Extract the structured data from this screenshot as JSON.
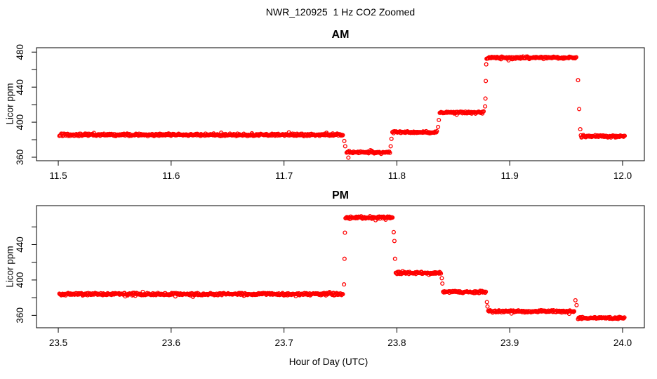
{
  "figure": {
    "title": "NWR_120925  1 Hz CO2 Zoomed",
    "xlabel": "Hour of Day (UTC)",
    "background": "#FFFFFF",
    "text_color": "#000000",
    "marker_color": "#FF0000"
  },
  "chart_data": [
    {
      "type": "scatter",
      "panel": "AM",
      "title": "AM",
      "ylabel": "Licor ppm",
      "xlabel": "",
      "marker": "open-circle",
      "grid": false,
      "xlim": [
        11.4807,
        12.0193
      ],
      "ylim": [
        356,
        485
      ],
      "xticks": [
        11.5,
        11.6,
        11.7,
        11.8,
        11.9,
        12.0
      ],
      "xtick_labels": [
        "11.5",
        "11.6",
        "11.7",
        "11.8",
        "11.9",
        "12.0"
      ],
      "yticks": [
        360,
        400,
        440,
        480
      ],
      "ytick_labels": [
        "360",
        "400",
        "440",
        "480"
      ],
      "yticks_minor": [
        380,
        420,
        460
      ],
      "sample_step_s": 2,
      "segments": [
        {
          "start": 11.501,
          "end": 11.7525,
          "ppm": 385.5,
          "noise": 1.7
        },
        {
          "start": 11.7555,
          "end": 11.794,
          "ppm": 365.5,
          "noise": 1.5
        },
        {
          "start": 11.796,
          "end": 11.8355,
          "ppm": 388.5,
          "noise": 1.5
        },
        {
          "start": 11.838,
          "end": 11.877,
          "ppm": 411.0,
          "noise": 1.5
        },
        {
          "start": 11.8795,
          "end": 11.9595,
          "ppm": 473.5,
          "noise": 1.7
        },
        {
          "start": 11.963,
          "end": 12.002,
          "ppm": 384.0,
          "noise": 1.7
        }
      ],
      "transition_points": [
        {
          "x": 11.7534,
          "ppm": 378.5
        },
        {
          "x": 11.7542,
          "ppm": 372.5
        },
        {
          "x": 11.757,
          "ppm": 359.5
        },
        {
          "x": 11.7945,
          "ppm": 372.5
        },
        {
          "x": 11.7952,
          "ppm": 381.0
        },
        {
          "x": 11.8365,
          "ppm": 394.5
        },
        {
          "x": 11.8372,
          "ppm": 402.5
        },
        {
          "x": 11.8782,
          "ppm": 418.0
        },
        {
          "x": 11.8785,
          "ppm": 427.0
        },
        {
          "x": 11.8788,
          "ppm": 447.0
        },
        {
          "x": 11.8792,
          "ppm": 466.0
        },
        {
          "x": 11.9605,
          "ppm": 448.0
        },
        {
          "x": 11.9615,
          "ppm": 415.0
        },
        {
          "x": 11.9625,
          "ppm": 392.0
        }
      ]
    },
    {
      "type": "scatter",
      "panel": "PM",
      "title": "PM",
      "ylabel": "Licor ppm",
      "xlabel": "Hour of Day (UTC)",
      "marker": "open-circle",
      "grid": false,
      "xlim": [
        23.4807,
        24.0193
      ],
      "ylim": [
        346,
        484
      ],
      "xticks": [
        23.5,
        23.6,
        23.7,
        23.8,
        23.9,
        24.0
      ],
      "xtick_labels": [
        "23.5",
        "23.6",
        "23.7",
        "23.8",
        "23.9",
        "24.0"
      ],
      "yticks": [
        360,
        400,
        440
      ],
      "ytick_labels": [
        "360",
        "400",
        "440"
      ],
      "yticks_minor": [
        380,
        420,
        460
      ],
      "sample_step_s": 2,
      "segments": [
        {
          "start": 23.501,
          "end": 23.7525,
          "ppm": 384.0,
          "noise": 1.7
        },
        {
          "start": 23.7545,
          "end": 23.7965,
          "ppm": 470.5,
          "noise": 1.7
        },
        {
          "start": 23.799,
          "end": 23.839,
          "ppm": 408.0,
          "noise": 1.5
        },
        {
          "start": 23.841,
          "end": 23.879,
          "ppm": 386.5,
          "noise": 1.5
        },
        {
          "start": 23.881,
          "end": 23.9575,
          "ppm": 364.5,
          "noise": 1.5
        },
        {
          "start": 23.9605,
          "end": 24.002,
          "ppm": 357.0,
          "noise": 1.4
        }
      ],
      "transition_points": [
        {
          "x": 23.7532,
          "ppm": 395.0
        },
        {
          "x": 23.7536,
          "ppm": 424.0
        },
        {
          "x": 23.754,
          "ppm": 453.5
        },
        {
          "x": 23.7972,
          "ppm": 454.0
        },
        {
          "x": 23.7978,
          "ppm": 444.0
        },
        {
          "x": 23.7984,
          "ppm": 424.0
        },
        {
          "x": 23.8398,
          "ppm": 402.0
        },
        {
          "x": 23.8403,
          "ppm": 396.0
        },
        {
          "x": 23.8798,
          "ppm": 375.0
        },
        {
          "x": 23.8803,
          "ppm": 370.0
        },
        {
          "x": 23.9582,
          "ppm": 377.0
        },
        {
          "x": 23.9592,
          "ppm": 371.5
        }
      ]
    }
  ]
}
